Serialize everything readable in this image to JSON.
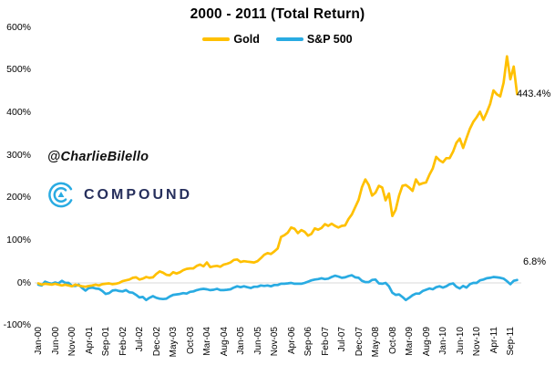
{
  "title": "2000 - 2011 (Total Return)",
  "legend": [
    {
      "label": "Gold",
      "color": "#FFC000"
    },
    {
      "label": "S&P 500",
      "color": "#29ABE2"
    }
  ],
  "watermark": {
    "handle": "@CharlieBilello",
    "brand": "COMPOUND"
  },
  "annotations": {
    "gold_end": "443.4%",
    "sp500_end": "6.8%"
  },
  "colors": {
    "gold_line": "#FFC000",
    "sp500_line": "#29ABE2",
    "zero_gridline": "#d9d9d9",
    "brand_navy": "#262f5c",
    "brand_cyan": "#29ABE2"
  },
  "chart_data": {
    "type": "line",
    "title": "2000 - 2011 (Total Return)",
    "xlabel": "",
    "ylabel": "",
    "ylim": [
      -100,
      600
    ],
    "grid": "horizontal line at 0% only",
    "legend_position": "top-center",
    "x_frequency": "monthly",
    "x_start": "Jan-00",
    "x_end": "Nov-11",
    "x_tick_labels": [
      "Jan-00",
      "Jun-00",
      "Nov-00",
      "Apr-01",
      "Sep-01",
      "Feb-02",
      "Jul-02",
      "Dec-02",
      "May-03",
      "Oct-03",
      "Mar-04",
      "Aug-04",
      "Jan-05",
      "Jun-05",
      "Nov-05",
      "Apr-06",
      "Sep-06",
      "Feb-07",
      "Jul-07",
      "Dec-07",
      "May-08",
      "Oct-08",
      "Mar-09",
      "Aug-09",
      "Jan-10",
      "Jun-10",
      "Nov-10",
      "Apr-11",
      "Sep-11"
    ],
    "y_ticks": [
      {
        "label": "600%",
        "value": 600
      },
      {
        "label": "500%",
        "value": 500
      },
      {
        "label": "400%",
        "value": 400
      },
      {
        "label": "300%",
        "value": 300
      },
      {
        "label": "200%",
        "value": 200
      },
      {
        "label": "100%",
        "value": 100
      },
      {
        "label": "0%",
        "value": 0
      },
      {
        "label": "-100%",
        "value": -100
      }
    ],
    "series": [
      {
        "name": "Gold",
        "color": "#FFC000",
        "end_label": "443.4%",
        "values": [
          -1,
          -4,
          -2,
          -3,
          -4,
          -2,
          -4,
          -6,
          -4,
          -6,
          -8,
          -4,
          -6,
          -8,
          -9,
          -7,
          -6,
          -4,
          -6,
          -3,
          -2,
          -1,
          -3,
          -2,
          0,
          4,
          6,
          8,
          12,
          13,
          8,
          10,
          14,
          12,
          13,
          21,
          27,
          24,
          19,
          18,
          25,
          22,
          25,
          30,
          33,
          34,
          34,
          40,
          43,
          39,
          48,
          37,
          39,
          40,
          38,
          43,
          45,
          48,
          54,
          55,
          49,
          51,
          50,
          49,
          48,
          51,
          58,
          66,
          70,
          68,
          74,
          81,
          108,
          112,
          118,
          130,
          127,
          117,
          124,
          120,
          111,
          115,
          128,
          125,
          129,
          138,
          134,
          139,
          134,
          130,
          134,
          135,
          150,
          161,
          178,
          195,
          225,
          243,
          230,
          205,
          212,
          228,
          224,
          194,
          210,
          157,
          172,
          205,
          228,
          230,
          224,
          216,
          243,
          231,
          234,
          236,
          254,
          269,
          296,
          288,
          283,
          293,
          293,
          308,
          329,
          339,
          317,
          340,
          362,
          378,
          389,
          402,
          383,
          400,
          420,
          452,
          443,
          438,
          470,
          532,
          478,
          508,
          443.4
        ]
      },
      {
        "name": "S&P 500",
        "color": "#29ABE2",
        "end_label": "6.8%",
        "values": [
          -4,
          -6,
          3,
          0,
          -2,
          1,
          -1,
          5,
          0,
          0,
          -7,
          -7,
          -4,
          -12,
          -18,
          -12,
          -11,
          -13,
          -14,
          -19,
          -26,
          -24,
          -18,
          -17,
          -19,
          -20,
          -17,
          -22,
          -23,
          -28,
          -34,
          -33,
          -40,
          -35,
          -31,
          -35,
          -37,
          -38,
          -37,
          -32,
          -28,
          -27,
          -26,
          -24,
          -25,
          -21,
          -20,
          -17,
          -15,
          -14,
          -15,
          -17,
          -16,
          -14,
          -17,
          -17,
          -16,
          -15,
          -11,
          -8,
          -10,
          -8,
          -10,
          -12,
          -9,
          -9,
          -6,
          -7,
          -6,
          -8,
          -5,
          -5,
          -2,
          -2,
          -1,
          0,
          -2,
          -2,
          -2,
          0,
          3,
          6,
          8,
          9,
          11,
          9,
          10,
          14,
          17,
          15,
          12,
          13,
          16,
          18,
          13,
          12,
          5,
          2,
          2,
          7,
          8,
          -1,
          -2,
          0,
          -8,
          -23,
          -28,
          -27,
          -33,
          -40,
          -35,
          -29,
          -25,
          -25,
          -19,
          -16,
          -13,
          -15,
          -10,
          -8,
          -11,
          -8,
          -3,
          -1,
          -9,
          -13,
          -7,
          -11,
          -3,
          0,
          0,
          6,
          8,
          11,
          12,
          14,
          13,
          12,
          10,
          4,
          -3,
          5,
          6.8
        ]
      }
    ]
  }
}
